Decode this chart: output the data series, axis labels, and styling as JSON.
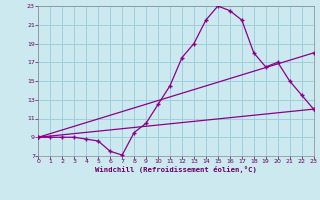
{
  "xlabel": "Windchill (Refroidissement éolien,°C)",
  "background_color": "#cce9f0",
  "grid_color": "#9ecfdc",
  "line_color": "#8b008b",
  "xlim": [
    0,
    23
  ],
  "ylim": [
    7,
    23
  ],
  "xticks": [
    0,
    1,
    2,
    3,
    4,
    5,
    6,
    7,
    8,
    9,
    10,
    11,
    12,
    13,
    14,
    15,
    16,
    17,
    18,
    19,
    20,
    21,
    22,
    23
  ],
  "yticks": [
    7,
    9,
    11,
    13,
    15,
    17,
    19,
    21,
    23
  ],
  "line1_x": [
    0,
    1,
    2,
    3,
    4,
    5,
    6,
    7,
    8,
    9,
    10,
    11,
    12,
    13,
    14,
    15,
    16,
    17,
    18,
    19,
    20,
    21,
    22,
    23
  ],
  "line1_y": [
    9,
    9,
    9,
    9,
    8.8,
    8.6,
    7.5,
    7.1,
    9.5,
    10.5,
    12.5,
    14.5,
    17.5,
    19.0,
    21.5,
    23.0,
    22.5,
    21.5,
    18.0,
    16.5,
    17.0,
    15.0,
    13.5,
    12.0
  ],
  "line2_x": [
    0,
    23
  ],
  "line2_y": [
    9,
    18
  ],
  "line3_x": [
    0,
    23
  ],
  "line3_y": [
    9,
    12
  ]
}
